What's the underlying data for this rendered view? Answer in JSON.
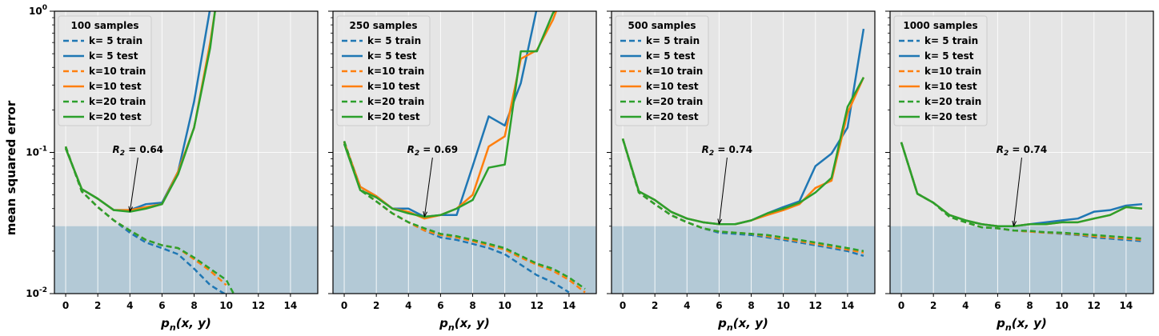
{
  "figure": {
    "ylabel": "mean squared error",
    "xlabel": "p_n(x, y)",
    "colors": {
      "k5": "#1f77b4",
      "k10": "#ff7f0e",
      "k20": "#2ca02c",
      "axes_bg": "#e5e5e5",
      "band": "#b3c9d6"
    }
  },
  "chart_data": [
    {
      "type": "line",
      "title": "100 samples",
      "xlabel": "p_n(x, y)",
      "ylabel": "mean squared error",
      "xlim": [
        -0.7,
        15.7
      ],
      "ylim": [
        0.01,
        1
      ],
      "yscale": "log",
      "grid": true,
      "legend_position": "top-left",
      "shaded_band": [
        0.01,
        0.03
      ],
      "annotation": {
        "label": "R2",
        "value": "= 0.64",
        "point": [
          4,
          0.038
        ]
      },
      "x_ticks": [
        0,
        2,
        4,
        6,
        8,
        10,
        12,
        14
      ],
      "y_ticks": [
        "10^-2",
        "10^-1",
        "10^0"
      ],
      "series": [
        {
          "name": "k= 5 train",
          "color": "k5",
          "style": "dashed",
          "x": [
            0,
            1,
            2,
            3,
            4,
            5,
            6,
            7,
            8,
            9,
            10
          ],
          "y": [
            0.11,
            0.053,
            0.041,
            0.033,
            0.027,
            0.023,
            0.021,
            0.019,
            0.015,
            0.0115,
            0.0098
          ]
        },
        {
          "name": "k= 5 test",
          "color": "k5",
          "style": "solid",
          "x": [
            0,
            1,
            2,
            3,
            4,
            5,
            6,
            7,
            8,
            9
          ],
          "y": [
            0.107,
            0.055,
            0.047,
            0.039,
            0.039,
            0.043,
            0.044,
            0.073,
            0.23,
            1.05
          ]
        },
        {
          "name": "k=10 train",
          "color": "k10",
          "style": "dashed",
          "x": [
            0,
            1,
            2,
            3,
            4,
            5,
            6,
            7,
            8,
            9,
            10
          ],
          "y": [
            0.11,
            0.053,
            0.041,
            0.033,
            0.028,
            0.024,
            0.022,
            0.021,
            0.0175,
            0.0145,
            0.0115
          ]
        },
        {
          "name": "k=10 test",
          "color": "k10",
          "style": "solid",
          "x": [
            0,
            1,
            2,
            3,
            4,
            5,
            6,
            7,
            8,
            9,
            9.3
          ],
          "y": [
            0.107,
            0.055,
            0.047,
            0.039,
            0.039,
            0.041,
            0.043,
            0.073,
            0.15,
            0.6,
            1.0
          ]
        },
        {
          "name": "k=20 train",
          "color": "k20",
          "style": "dashed",
          "x": [
            0,
            1,
            2,
            3,
            4,
            5,
            6,
            7,
            8,
            9,
            10,
            10.5
          ],
          "y": [
            0.11,
            0.053,
            0.041,
            0.033,
            0.028,
            0.024,
            0.022,
            0.021,
            0.018,
            0.015,
            0.0125,
            0.0098
          ]
        },
        {
          "name": "k=20 test",
          "color": "k20",
          "style": "solid",
          "x": [
            0,
            1,
            2,
            3,
            4,
            5,
            6,
            7,
            8,
            9,
            9.3
          ],
          "y": [
            0.107,
            0.055,
            0.047,
            0.039,
            0.038,
            0.04,
            0.043,
            0.07,
            0.15,
            0.55,
            1.0
          ]
        }
      ]
    },
    {
      "type": "line",
      "title": "250 samples",
      "xlabel": "p_n(x, y)",
      "ylabel": "",
      "xlim": [
        -0.7,
        15.7
      ],
      "ylim": [
        0.01,
        1
      ],
      "yscale": "log",
      "grid": true,
      "legend_position": "top-left",
      "shaded_band": [
        0.01,
        0.03
      ],
      "annotation": {
        "label": "R2",
        "value": "= 0.69",
        "point": [
          5,
          0.035
        ]
      },
      "x_ticks": [
        0,
        2,
        4,
        6,
        8,
        10,
        12,
        14
      ],
      "y_ticks": [],
      "series": [
        {
          "name": "k= 5 train",
          "color": "k5",
          "style": "dashed",
          "x": [
            0,
            1,
            2,
            3,
            4,
            5,
            6,
            7,
            8,
            9,
            10,
            11,
            12,
            13,
            14
          ],
          "y": [
            0.12,
            0.055,
            0.045,
            0.037,
            0.032,
            0.028,
            0.025,
            0.024,
            0.0225,
            0.021,
            0.019,
            0.016,
            0.0135,
            0.012,
            0.0102
          ]
        },
        {
          "name": "k= 5 test",
          "color": "k5",
          "style": "solid",
          "x": [
            0,
            1,
            2,
            3,
            4,
            5,
            6,
            7,
            8,
            9,
            10,
            11,
            12
          ],
          "y": [
            0.118,
            0.057,
            0.049,
            0.04,
            0.04,
            0.035,
            0.036,
            0.036,
            0.08,
            0.18,
            0.155,
            0.31,
            1.05
          ]
        },
        {
          "name": "k=10 train",
          "color": "k10",
          "style": "dashed",
          "x": [
            0,
            1,
            2,
            3,
            4,
            5,
            6,
            7,
            8,
            9,
            10,
            11,
            12,
            13,
            14,
            15
          ],
          "y": [
            0.12,
            0.055,
            0.045,
            0.037,
            0.032,
            0.028,
            0.026,
            0.025,
            0.0235,
            0.022,
            0.0205,
            0.018,
            0.016,
            0.0145,
            0.0125,
            0.0102
          ]
        },
        {
          "name": "k=10 test",
          "color": "k10",
          "style": "solid",
          "x": [
            0,
            1,
            2,
            3,
            4,
            5,
            6,
            7,
            8,
            9,
            10,
            11,
            12,
            13,
            13.2
          ],
          "y": [
            0.118,
            0.057,
            0.049,
            0.04,
            0.038,
            0.034,
            0.036,
            0.04,
            0.05,
            0.11,
            0.13,
            0.46,
            0.53,
            0.87,
            1.0
          ]
        },
        {
          "name": "k=20 train",
          "color": "k20",
          "style": "dashed",
          "x": [
            0,
            1,
            2,
            3,
            4,
            5,
            6,
            7,
            8,
            9,
            10,
            11,
            12,
            13,
            14,
            15
          ],
          "y": [
            0.12,
            0.054,
            0.045,
            0.037,
            0.032,
            0.029,
            0.0265,
            0.0255,
            0.024,
            0.0225,
            0.021,
            0.0185,
            0.0163,
            0.015,
            0.013,
            0.0108
          ]
        },
        {
          "name": "k=20 test",
          "color": "k20",
          "style": "solid",
          "x": [
            0,
            1,
            2,
            3,
            4,
            5,
            6,
            7,
            8,
            9,
            10,
            11,
            12,
            13,
            13.1
          ],
          "y": [
            0.115,
            0.054,
            0.048,
            0.04,
            0.037,
            0.035,
            0.036,
            0.04,
            0.046,
            0.078,
            0.082,
            0.52,
            0.52,
            0.97,
            1.0
          ]
        }
      ]
    },
    {
      "type": "line",
      "title": "500 samples",
      "xlabel": "p_n(x, y)",
      "ylabel": "",
      "xlim": [
        -0.7,
        15.7
      ],
      "ylim": [
        0.01,
        1
      ],
      "yscale": "log",
      "grid": true,
      "legend_position": "top-left",
      "shaded_band": [
        0.01,
        0.03
      ],
      "annotation": {
        "label": "R2",
        "value": "= 0.74",
        "point": [
          6,
          0.031
        ]
      },
      "x_ticks": [
        0,
        2,
        4,
        6,
        8,
        10,
        12,
        14
      ],
      "y_ticks": [],
      "series": [
        {
          "name": "k= 5 train",
          "color": "k5",
          "style": "dashed",
          "x": [
            0,
            1,
            2,
            3,
            4,
            5,
            6,
            7,
            8,
            9,
            10,
            11,
            12,
            13,
            14,
            15
          ],
          "y": [
            0.125,
            0.052,
            0.043,
            0.036,
            0.032,
            0.029,
            0.027,
            0.0265,
            0.026,
            0.025,
            0.024,
            0.023,
            0.022,
            0.021,
            0.02,
            0.0185
          ]
        },
        {
          "name": "k= 5 test",
          "color": "k5",
          "style": "solid",
          "x": [
            0,
            1,
            2,
            3,
            4,
            5,
            6,
            7,
            8,
            9,
            10,
            11,
            12,
            13,
            14,
            15
          ],
          "y": [
            0.125,
            0.053,
            0.046,
            0.038,
            0.034,
            0.032,
            0.031,
            0.031,
            0.033,
            0.037,
            0.041,
            0.045,
            0.08,
            0.098,
            0.15,
            0.75
          ]
        },
        {
          "name": "k=10 train",
          "color": "k10",
          "style": "dashed",
          "x": [
            0,
            1,
            2,
            3,
            4,
            5,
            6,
            7,
            8,
            9,
            10,
            11,
            12,
            13,
            14,
            15
          ],
          "y": [
            0.125,
            0.052,
            0.043,
            0.036,
            0.032,
            0.029,
            0.0275,
            0.027,
            0.0265,
            0.0255,
            0.0245,
            0.0235,
            0.0225,
            0.0215,
            0.0205,
            0.0195
          ]
        },
        {
          "name": "k=10 test",
          "color": "k10",
          "style": "solid",
          "x": [
            0,
            1,
            2,
            3,
            4,
            5,
            6,
            7,
            8,
            9,
            10,
            11,
            12,
            13,
            14,
            15
          ],
          "y": [
            0.125,
            0.053,
            0.046,
            0.038,
            0.034,
            0.032,
            0.031,
            0.031,
            0.033,
            0.036,
            0.039,
            0.043,
            0.056,
            0.063,
            0.19,
            0.34
          ]
        },
        {
          "name": "k=20 train",
          "color": "k20",
          "style": "dashed",
          "x": [
            0,
            1,
            2,
            3,
            4,
            5,
            6,
            7,
            8,
            9,
            10,
            11,
            12,
            13,
            14,
            15
          ],
          "y": [
            0.125,
            0.052,
            0.043,
            0.036,
            0.032,
            0.029,
            0.0275,
            0.027,
            0.0265,
            0.026,
            0.025,
            0.024,
            0.023,
            0.022,
            0.021,
            0.02
          ]
        },
        {
          "name": "k=20 test",
          "color": "k20",
          "style": "solid",
          "x": [
            0,
            1,
            2,
            3,
            4,
            5,
            6,
            7,
            8,
            9,
            10,
            11,
            12,
            13,
            14,
            15
          ],
          "y": [
            0.125,
            0.053,
            0.046,
            0.038,
            0.034,
            0.032,
            0.031,
            0.031,
            0.033,
            0.037,
            0.04,
            0.044,
            0.052,
            0.066,
            0.21,
            0.34
          ]
        }
      ]
    },
    {
      "type": "line",
      "title": "1000 samples",
      "xlabel": "p_n(x, y)",
      "ylabel": "",
      "xlim": [
        -0.7,
        15.7
      ],
      "ylim": [
        0.01,
        1
      ],
      "yscale": "log",
      "grid": true,
      "legend_position": "top-left",
      "shaded_band": [
        0.01,
        0.03
      ],
      "annotation": {
        "label": "R2",
        "value": "= 0.74",
        "point": [
          7,
          0.03
        ]
      },
      "x_ticks": [
        0,
        2,
        4,
        6,
        8,
        10,
        12,
        14
      ],
      "y_ticks": [],
      "series": [
        {
          "name": "k= 5 train",
          "color": "k5",
          "style": "dashed",
          "x": [
            0,
            1,
            2,
            3,
            4,
            5,
            6,
            7,
            8,
            9,
            10,
            11,
            12,
            13,
            14,
            15
          ],
          "y": [
            0.118,
            0.051,
            0.044,
            0.035,
            0.032,
            0.0295,
            0.029,
            0.028,
            0.0275,
            0.027,
            0.0265,
            0.026,
            0.025,
            0.0245,
            0.024,
            0.0235
          ]
        },
        {
          "name": "k= 5 test",
          "color": "k5",
          "style": "solid",
          "x": [
            0,
            1,
            2,
            3,
            4,
            5,
            6,
            7,
            8,
            9,
            10,
            11,
            12,
            13,
            14,
            15
          ],
          "y": [
            0.118,
            0.051,
            0.044,
            0.036,
            0.033,
            0.031,
            0.03,
            0.03,
            0.031,
            0.032,
            0.033,
            0.034,
            0.038,
            0.039,
            0.042,
            0.043
          ]
        },
        {
          "name": "k=10 train",
          "color": "k10",
          "style": "dashed",
          "x": [
            0,
            1,
            2,
            3,
            4,
            5,
            6,
            7,
            8,
            9,
            10,
            11,
            12,
            13,
            14,
            15
          ],
          "y": [
            0.118,
            0.051,
            0.044,
            0.035,
            0.032,
            0.0295,
            0.029,
            0.028,
            0.0275,
            0.027,
            0.0268,
            0.0262,
            0.0255,
            0.025,
            0.0245,
            0.024
          ]
        },
        {
          "name": "k=10 test",
          "color": "k10",
          "style": "solid",
          "x": [
            0,
            1,
            2,
            3,
            4,
            5,
            6,
            7,
            8,
            9,
            10,
            11,
            12,
            13,
            14,
            15
          ],
          "y": [
            0.118,
            0.051,
            0.044,
            0.036,
            0.033,
            0.031,
            0.03,
            0.03,
            0.031,
            0.031,
            0.032,
            0.032,
            0.034,
            0.036,
            0.041,
            0.04
          ]
        },
        {
          "name": "k=20 train",
          "color": "k20",
          "style": "dashed",
          "x": [
            0,
            1,
            2,
            3,
            4,
            5,
            6,
            7,
            8,
            9,
            10,
            11,
            12,
            13,
            14,
            15
          ],
          "y": [
            0.118,
            0.051,
            0.044,
            0.035,
            0.032,
            0.0295,
            0.029,
            0.028,
            0.0278,
            0.0272,
            0.027,
            0.0265,
            0.026,
            0.0255,
            0.025,
            0.0245
          ]
        },
        {
          "name": "k=20 test",
          "color": "k20",
          "style": "solid",
          "x": [
            0,
            1,
            2,
            3,
            4,
            5,
            6,
            7,
            8,
            9,
            10,
            11,
            12,
            13,
            14,
            15
          ],
          "y": [
            0.118,
            0.051,
            0.044,
            0.036,
            0.033,
            0.031,
            0.03,
            0.03,
            0.031,
            0.031,
            0.032,
            0.032,
            0.034,
            0.036,
            0.041,
            0.04
          ]
        }
      ]
    }
  ]
}
